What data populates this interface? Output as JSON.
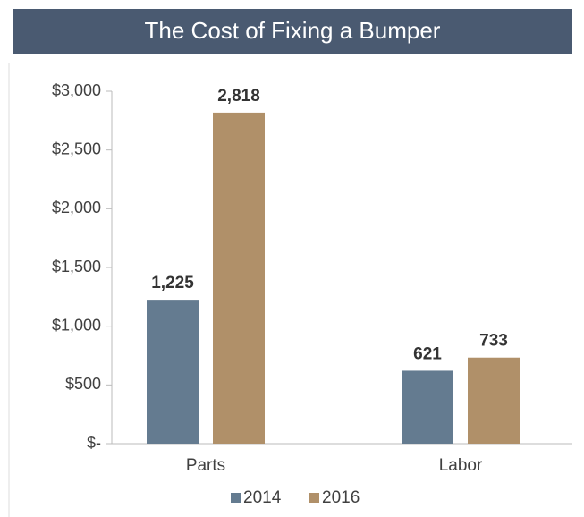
{
  "chart_data": {
    "type": "bar",
    "title": "The Cost of Fixing a Bumper",
    "categories": [
      "Parts",
      "Labor"
    ],
    "series": [
      {
        "name": "2014",
        "color": "#647b90",
        "values": [
          1225,
          621
        ],
        "value_labels": [
          "1,225",
          "621"
        ]
      },
      {
        "name": "2016",
        "color": "#b09069",
        "values": [
          2818,
          733
        ],
        "value_labels": [
          "2,818",
          "733"
        ]
      }
    ],
    "ylim": [
      0,
      3000
    ],
    "yticks": [
      {
        "value": 0,
        "label": "$-"
      },
      {
        "value": 500,
        "label": "$500"
      },
      {
        "value": 1000,
        "label": "$1,000"
      },
      {
        "value": 1500,
        "label": "$1,500"
      },
      {
        "value": 2000,
        "label": "$2,000"
      },
      {
        "value": 2500,
        "label": "$2,500"
      },
      {
        "value": 3000,
        "label": "$3,000"
      }
    ],
    "grid": false,
    "legend": "bottom"
  }
}
